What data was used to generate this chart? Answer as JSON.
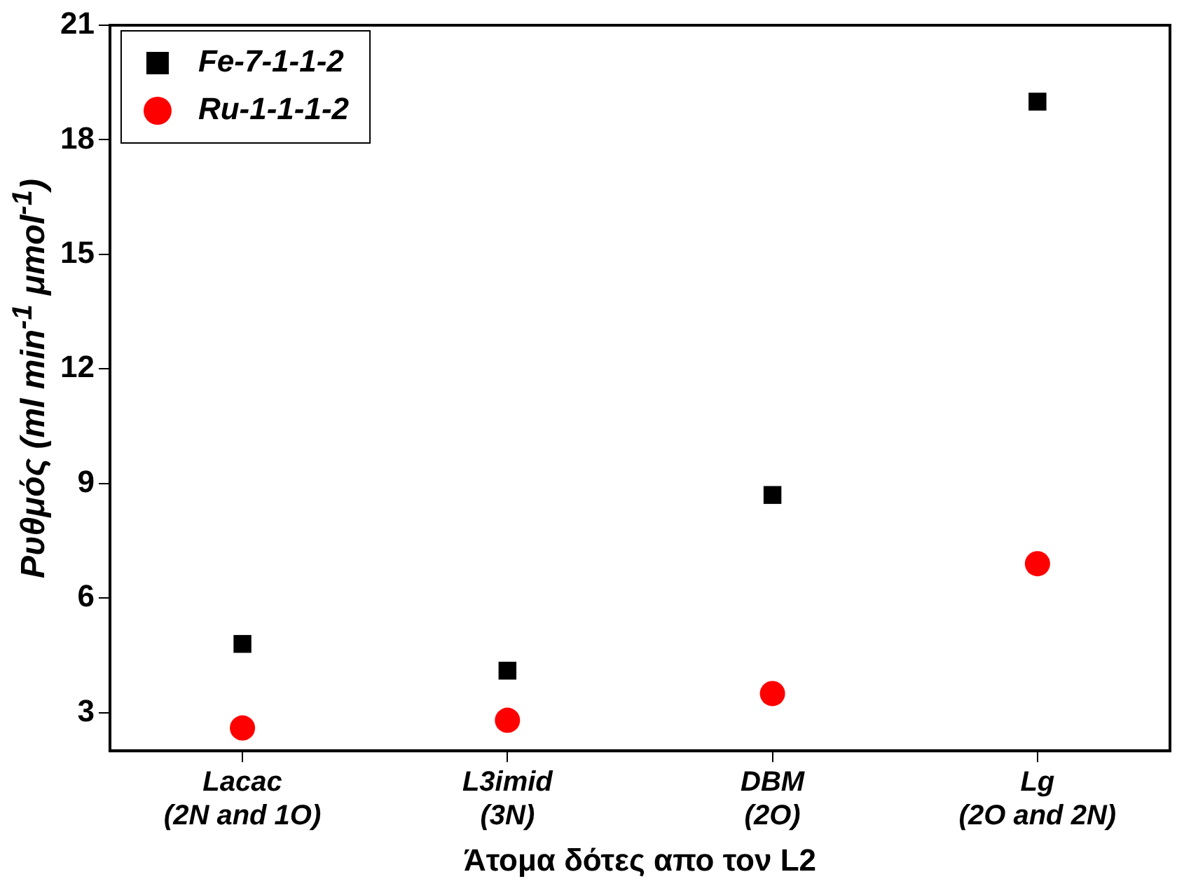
{
  "chart_data": {
    "type": "scatter",
    "xlabel": "Άτομα δότες απο τον L2",
    "ylabel": "Ρυθμός (ml min$^{-1}$ μmol$^{-1}$)",
    "categories": [
      "Lacac\n(2N and 1O)",
      "L3imid\n(3N)",
      "DBM\n(2O)",
      "Lg\n(2O and 2N)"
    ],
    "series": [
      {
        "name": "Fe-7-1-1-2",
        "color": "#000000",
        "marker": "square",
        "values": [
          4.8,
          4.1,
          8.7,
          19.0
        ]
      },
      {
        "name": "Ru-1-1-1-2",
        "color": "#ff0000",
        "marker": "circle",
        "values": [
          2.6,
          2.8,
          3.5,
          6.9
        ]
      }
    ],
    "ylim": [
      2,
      21
    ],
    "yticks": [
      3,
      6,
      9,
      12,
      15,
      18,
      21
    ],
    "grid": false,
    "legend": "top left"
  }
}
